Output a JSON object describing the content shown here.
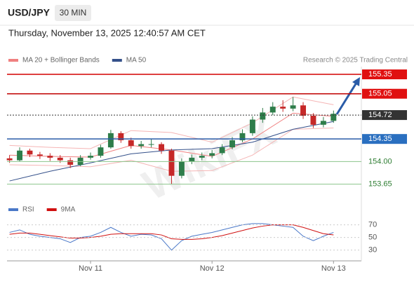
{
  "header": {
    "symbol": "USD/JPY",
    "timeframe": "30 MIN",
    "timestamp": "Thursday, November 13, 2025 12:40:57 AM CET"
  },
  "watermark": "WikiFX",
  "chart_data": [
    {
      "type": "candlestick",
      "source": "Research © 2025 Trading Central",
      "up_color": "#2e7d4a",
      "down_color": "#c62828",
      "xlim": [
        -16.5,
        53.5
      ],
      "ylim": [
        153.44,
        155.47
      ],
      "x": [
        -16,
        -14,
        -12,
        -10,
        -8,
        -6,
        -4,
        -2,
        0,
        2,
        4,
        6,
        8,
        10,
        12,
        14,
        16,
        18,
        20,
        22,
        24,
        26,
        28,
        30,
        32,
        34,
        36,
        38,
        40,
        42,
        44,
        46,
        48
      ],
      "open": [
        154.05,
        154.02,
        154.17,
        154.11,
        154.09,
        154.06,
        154.02,
        153.95,
        154.06,
        154.09,
        154.22,
        154.44,
        154.33,
        154.24,
        154.27,
        154.27,
        154.17,
        153.78,
        154.0,
        154.06,
        154.09,
        154.13,
        154.22,
        154.33,
        154.44,
        154.65,
        154.76,
        154.85,
        154.82,
        154.87,
        154.71,
        154.57,
        154.63
      ],
      "high": [
        154.1,
        154.22,
        154.2,
        154.15,
        154.13,
        154.1,
        154.06,
        154.1,
        154.14,
        154.26,
        154.49,
        154.47,
        154.37,
        154.32,
        154.35,
        154.3,
        154.2,
        154.05,
        154.11,
        154.14,
        154.18,
        154.27,
        154.38,
        154.5,
        154.7,
        154.83,
        154.92,
        154.95,
        155.0,
        154.92,
        154.75,
        154.69,
        154.79
      ],
      "low": [
        153.98,
        154.0,
        154.07,
        154.04,
        154.01,
        153.98,
        153.9,
        153.93,
        154.03,
        154.06,
        154.2,
        154.29,
        154.2,
        154.2,
        154.22,
        154.12,
        153.65,
        153.74,
        153.96,
        154.02,
        154.05,
        154.1,
        154.19,
        154.3,
        154.4,
        154.6,
        154.72,
        154.77,
        154.78,
        154.66,
        154.52,
        154.53,
        154.6
      ],
      "close": [
        154.02,
        154.17,
        154.11,
        154.09,
        154.06,
        154.02,
        153.95,
        154.06,
        154.09,
        154.22,
        154.44,
        154.33,
        154.24,
        154.27,
        154.27,
        154.17,
        153.78,
        154.0,
        154.06,
        154.09,
        154.13,
        154.22,
        154.33,
        154.44,
        154.65,
        154.76,
        154.85,
        154.82,
        154.87,
        154.71,
        154.57,
        154.63,
        154.74
      ],
      "series": [
        {
          "name": "MA 20 + Bollinger Bands",
          "color": "#f08080",
          "x": [
            -16,
            -8,
            0,
            8,
            16,
            24,
            32,
            40,
            48
          ],
          "values": [
            154.1,
            154.08,
            154.07,
            154.25,
            154.18,
            154.08,
            154.35,
            154.75,
            154.7
          ],
          "upper": [
            154.25,
            154.22,
            154.2,
            154.48,
            154.45,
            154.3,
            154.6,
            155.0,
            154.88
          ],
          "lower": [
            153.95,
            153.94,
            153.92,
            154.02,
            153.85,
            153.86,
            154.1,
            154.5,
            154.52
          ]
        },
        {
          "name": "MA 50",
          "color": "#34508a",
          "x": [
            -16,
            -8,
            0,
            8,
            16,
            24,
            32,
            40,
            48
          ],
          "values": [
            153.7,
            153.85,
            153.98,
            154.12,
            154.18,
            154.2,
            154.3,
            154.5,
            154.62
          ]
        }
      ],
      "levels": [
        {
          "value": 155.35,
          "color": "#d40000",
          "fill": "#e01010"
        },
        {
          "value": 155.05,
          "color": "#c00000",
          "fill": "#e01010"
        },
        {
          "value": 154.72,
          "color": "#333333",
          "fill": "#333333",
          "style": "dotted"
        },
        {
          "value": 154.35,
          "color": "#2a5ca8",
          "fill": "#2a6fc0"
        },
        {
          "value": 154,
          "label": "154.00",
          "color": "#8bc48b",
          "text_color": "#2e7d32"
        },
        {
          "value": 153.65,
          "color": "#8bc48b",
          "text_color": "#2e7d32"
        }
      ]
    },
    {
      "type": "line",
      "xlim": [
        -16.5,
        53.5
      ],
      "ylim": [
        13,
        104
      ],
      "yticks": [
        70,
        50,
        30
      ],
      "xticks": [
        {
          "value": 0,
          "label": "Nov 11"
        },
        {
          "value": 24,
          "label": "Nov 12"
        },
        {
          "value": 48,
          "label": "Nov 13"
        }
      ],
      "x": [
        -16,
        -14,
        -12,
        -10,
        -8,
        -6,
        -4,
        -2,
        0,
        2,
        4,
        6,
        8,
        10,
        12,
        14,
        16,
        18,
        20,
        22,
        24,
        26,
        28,
        30,
        32,
        34,
        36,
        38,
        40,
        42,
        44,
        46,
        48
      ],
      "series": [
        {
          "name": "RSI",
          "color": "#4a78c8",
          "values": [
            58,
            62,
            55,
            52,
            50,
            48,
            42,
            50,
            52,
            58,
            66,
            58,
            52,
            55,
            54,
            48,
            30,
            45,
            52,
            55,
            58,
            62,
            66,
            70,
            72,
            72,
            70,
            68,
            66,
            52,
            45,
            52,
            58
          ]
        },
        {
          "name": "9MA",
          "color": "#d01010",
          "values": [
            55,
            57,
            57,
            55,
            53,
            51,
            49,
            49,
            50,
            52,
            55,
            56,
            56,
            56,
            56,
            54,
            48,
            47,
            47,
            48,
            50,
            53,
            57,
            61,
            65,
            68,
            70,
            70,
            70,
            66,
            61,
            56,
            54
          ]
        }
      ]
    }
  ]
}
